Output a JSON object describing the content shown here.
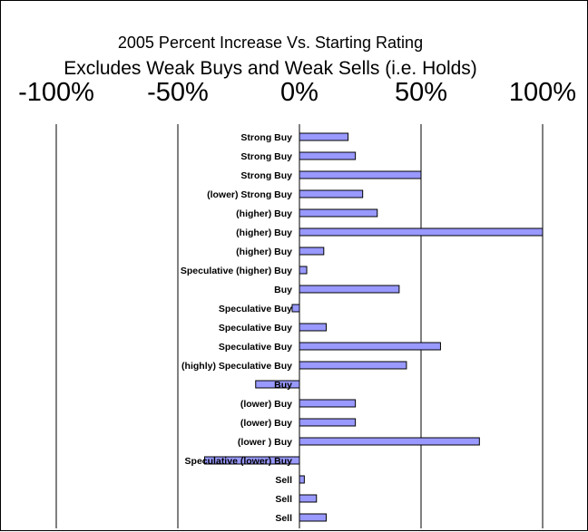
{
  "chart_data": {
    "type": "bar",
    "orientation": "horizontal",
    "title": "2005 Percent Increase Vs. Starting Rating",
    "subtitle": "Excludes Weak Buys and Weak Sells (i.e. Holds)",
    "xlim": [
      -100,
      100
    ],
    "xticks": [
      -100,
      -50,
      0,
      50,
      100
    ],
    "xtick_labels": [
      "-100%",
      "-50%",
      "0%",
      "50%",
      "100%"
    ],
    "xaxis_position": "top",
    "grid": true,
    "bar_color": "#9999ff",
    "categories": [
      "Strong Buy",
      "Strong Buy",
      "Strong Buy",
      "(lower) Strong Buy",
      "(higher) Buy",
      "(higher) Buy",
      "(higher) Buy",
      "Speculative (higher) Buy",
      "Buy",
      "Speculative Buy",
      "Speculative Buy",
      "Speculative Buy",
      "(highly) Speculative Buy",
      "Buy",
      "(lower) Buy",
      "(lower) Buy",
      "(lower ) Buy",
      "Speculative (lower) Buy",
      "Sell",
      "Sell",
      "Sell"
    ],
    "values": [
      20,
      23,
      50,
      26,
      32,
      100,
      10,
      3,
      41,
      -3,
      11,
      58,
      44,
      -18,
      23,
      23,
      74,
      -39,
      2,
      7,
      11
    ]
  }
}
